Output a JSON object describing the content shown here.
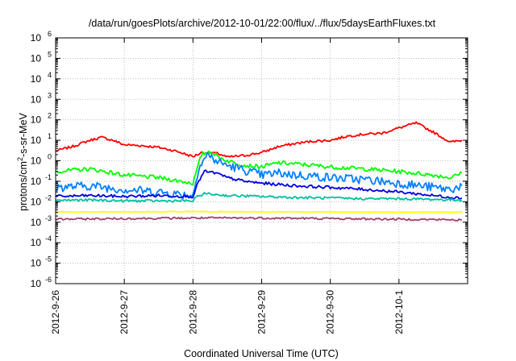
{
  "chart_data": {
    "type": "line",
    "title": "/data/run/goesPlots/archive/2012-10-01/22:00/flux/../flux/5daysEarthFluxes.txt",
    "xlabel": "Coordinated Universal Time (UTC)",
    "ylabel": "protons/cm²-s-sr-MeV",
    "ylabel_parts": {
      "pre": "protons/cm",
      "sup": "2",
      "post": "-s-sr-MeV"
    },
    "y_scale": "log",
    "ylim": [
      1e-06,
      1000000.0
    ],
    "y_ticks": [
      {
        "mant": "10",
        "exp": "6",
        "v": 6
      },
      {
        "mant": "10",
        "exp": "5",
        "v": 5
      },
      {
        "mant": "10",
        "exp": "4",
        "v": 4
      },
      {
        "mant": "10",
        "exp": "3",
        "v": 3
      },
      {
        "mant": "10",
        "exp": "2",
        "v": 2
      },
      {
        "mant": "10",
        "exp": "1",
        "v": 1
      },
      {
        "mant": "10",
        "exp": "0",
        "v": 0
      },
      {
        "mant": "10",
        "exp": "-1",
        "v": -1
      },
      {
        "mant": "10",
        "exp": "-2",
        "v": -2
      },
      {
        "mant": "10",
        "exp": "-3",
        "v": -3
      },
      {
        "mant": "10",
        "exp": "-4",
        "v": -4
      },
      {
        "mant": "10",
        "exp": "-5",
        "v": -5
      },
      {
        "mant": "10",
        "exp": "-6",
        "v": -6
      }
    ],
    "x_ticks": [
      "2012-9-26",
      "2012-9-27",
      "2012-9-28",
      "2012-9-29",
      "2012-9-30",
      "2012-10-1"
    ],
    "x_range_days": [
      "2012-9-26",
      "2012-10-2"
    ],
    "grid": true,
    "series": [
      {
        "color": "#ff0000",
        "x": [
          "2012-9-26 00:00",
          "2012-9-26 06:00",
          "2012-9-26 12:00",
          "2012-9-26 16:00",
          "2012-9-26 20:00",
          "2012-9-27 00:00",
          "2012-9-27 06:00",
          "2012-9-27 12:00",
          "2012-9-27 18:00",
          "2012-9-28 00:00",
          "2012-9-28 03:00",
          "2012-9-28 06:00",
          "2012-9-28 09:00",
          "2012-9-28 12:00",
          "2012-9-28 18:00",
          "2012-9-29 00:00",
          "2012-9-29 06:00",
          "2012-9-29 12:00",
          "2012-9-29 18:00",
          "2012-9-30 00:00",
          "2012-9-30 06:00",
          "2012-9-30 12:00",
          "2012-9-30 18:00",
          "2012-10-1 00:00",
          "2012-10-1 06:00",
          "2012-10-1 12:00",
          "2012-10-1 18:00",
          "2012-10-1 22:00"
        ],
        "y": [
          3,
          5,
          10,
          14,
          10,
          6,
          5.5,
          4.5,
          3,
          1.6,
          2.5,
          2.5,
          2.2,
          1.5,
          1.8,
          2.5,
          5,
          7,
          9,
          10,
          16,
          20,
          22,
          40,
          70,
          25,
          8,
          10
        ]
      },
      {
        "color": "#00ff00",
        "x": [
          "2012-9-26 00:00",
          "2012-9-26 12:00",
          "2012-9-27 00:00",
          "2012-9-27 12:00",
          "2012-9-28 00:00",
          "2012-9-28 03:00",
          "2012-9-28 06:00",
          "2012-9-28 09:00",
          "2012-9-28 12:00",
          "2012-9-28 18:00",
          "2012-9-29 00:00",
          "2012-9-29 06:00",
          "2012-9-29 12:00",
          "2012-9-29 18:00",
          "2012-9-30 00:00",
          "2012-9-30 12:00",
          "2012-10-1 00:00",
          "2012-10-1 12:00",
          "2012-10-1 18:00",
          "2012-10-1 22:00"
        ],
        "y": [
          0.3,
          0.4,
          0.2,
          0.15,
          0.08,
          2.0,
          3.0,
          1.5,
          1.0,
          0.6,
          0.5,
          0.8,
          0.7,
          0.6,
          0.5,
          0.4,
          0.3,
          0.2,
          0.15,
          0.25
        ]
      },
      {
        "color": "#0080ff",
        "x": [
          "2012-9-26 00:00",
          "2012-9-26 12:00",
          "2012-9-27 00:00",
          "2012-9-27 12:00",
          "2012-9-28 00:00",
          "2012-9-28 02:00",
          "2012-9-28 05:00",
          "2012-9-28 08:00",
          "2012-9-28 12:00",
          "2012-9-28 18:00",
          "2012-9-29 00:00",
          "2012-9-29 06:00",
          "2012-9-29 12:00",
          "2012-9-29 18:00",
          "2012-9-30 00:00",
          "2012-9-30 12:00",
          "2012-10-1 00:00",
          "2012-10-1 12:00",
          "2012-10-1 18:00",
          "2012-10-1 22:00"
        ],
        "y": [
          0.05,
          0.06,
          0.04,
          0.03,
          0.02,
          0.5,
          2.0,
          1.0,
          0.6,
          0.35,
          0.2,
          0.25,
          0.2,
          0.18,
          0.15,
          0.12,
          0.08,
          0.05,
          0.04,
          0.06
        ]
      },
      {
        "color": "#0000e0",
        "x": [
          "2012-9-26 00:00",
          "2012-9-26 12:00",
          "2012-9-27 00:00",
          "2012-9-27 12:00",
          "2012-9-28 00:00",
          "2012-9-28 02:00",
          "2012-9-28 04:00",
          "2012-9-28 08:00",
          "2012-9-28 12:00",
          "2012-9-28 18:00",
          "2012-9-29 00:00",
          "2012-9-29 12:00",
          "2012-9-30 00:00",
          "2012-9-30 12:00",
          "2012-10-1 00:00",
          "2012-10-1 12:00",
          "2012-10-1 22:00"
        ],
        "y": [
          0.018,
          0.02,
          0.018,
          0.02,
          0.018,
          0.1,
          0.3,
          0.25,
          0.15,
          0.1,
          0.08,
          0.06,
          0.05,
          0.04,
          0.03,
          0.02,
          0.015
        ]
      },
      {
        "color": "#00c0a0",
        "x": [
          "2012-9-26 00:00",
          "2012-9-26 12:00",
          "2012-9-27 00:00",
          "2012-9-27 12:00",
          "2012-9-28 00:00",
          "2012-9-28 02:00",
          "2012-9-28 04:00",
          "2012-9-28 12:00",
          "2012-9-29 00:00",
          "2012-9-29 12:00",
          "2012-9-30 00:00",
          "2012-9-30 12:00",
          "2012-10-1 00:00",
          "2012-10-1 12:00",
          "2012-10-1 22:00"
        ],
        "y": [
          0.012,
          0.012,
          0.011,
          0.011,
          0.011,
          0.02,
          0.025,
          0.02,
          0.018,
          0.016,
          0.015,
          0.014,
          0.014,
          0.013,
          0.012
        ]
      },
      {
        "color": "#ffff00",
        "x": [
          "2012-9-26 00:00",
          "2012-9-27 00:00",
          "2012-9-28 00:00",
          "2012-9-29 00:00",
          "2012-9-30 00:00",
          "2012-10-1 00:00",
          "2012-10-1 22:00"
        ],
        "y": [
          0.0032,
          0.0032,
          0.0033,
          0.0032,
          0.0032,
          0.0031,
          0.0031
        ]
      },
      {
        "color": "#a0406a",
        "x": [
          "2012-9-26 00:00",
          "2012-9-27 00:00",
          "2012-9-28 00:00",
          "2012-9-29 00:00",
          "2012-9-30 00:00",
          "2012-10-1 00:00",
          "2012-10-1 22:00"
        ],
        "y": [
          0.0014,
          0.0015,
          0.0016,
          0.0016,
          0.0015,
          0.0014,
          0.0013
        ]
      }
    ]
  }
}
